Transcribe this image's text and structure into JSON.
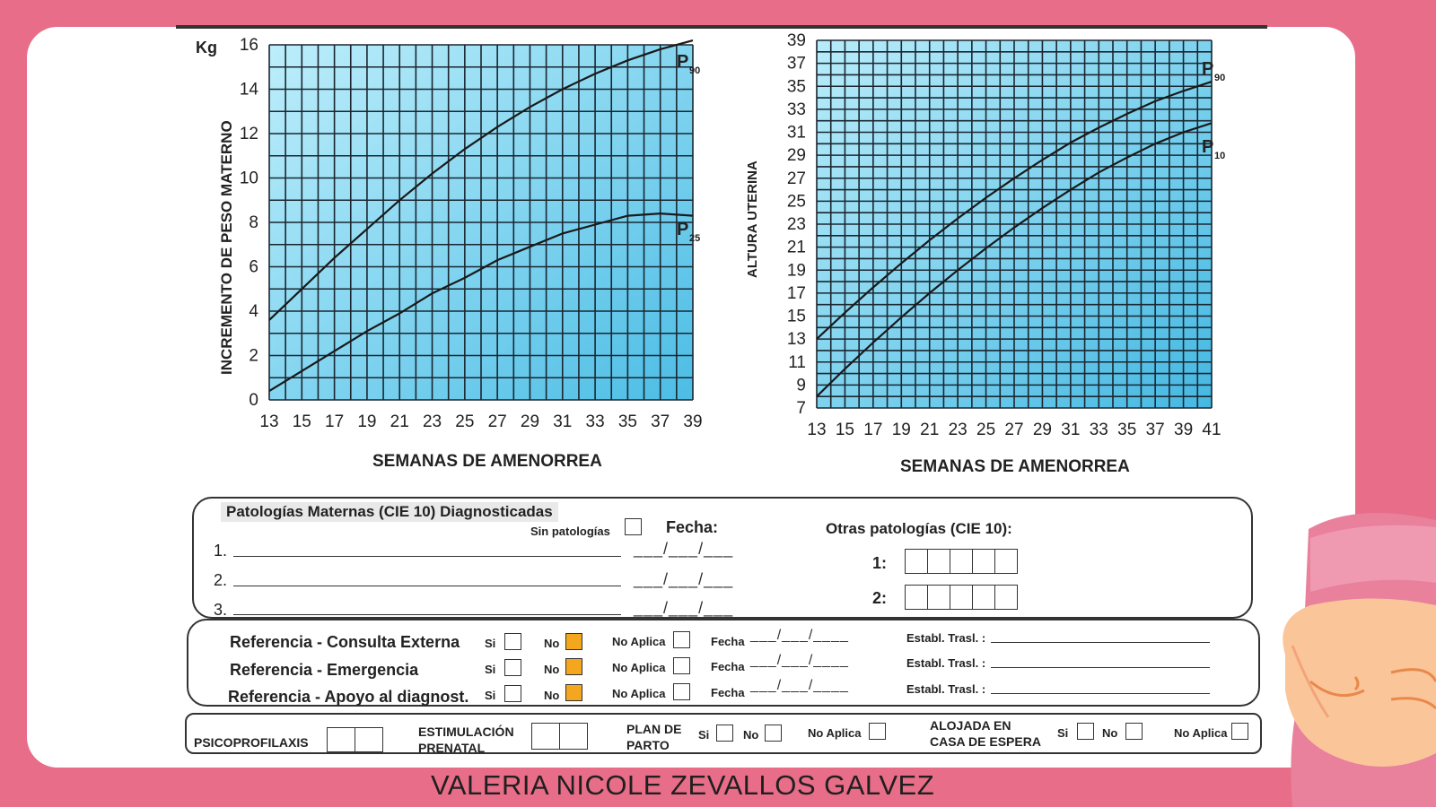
{
  "colors": {
    "background": "#e86d88",
    "grid_fill_light": "#b8ecfa",
    "grid_fill_dark": "#4fc0e6",
    "checked": "#f4a71e"
  },
  "left_chart": {
    "unit": "Kg",
    "ylabel": "INCREMENTO DE PESO MATERNO",
    "xlabel": "SEMANAS DE AMENORREA",
    "y_ticks": [
      "0",
      "2",
      "4",
      "6",
      "8",
      "10",
      "12",
      "14",
      "16"
    ],
    "x_ticks": [
      "13",
      "15",
      "17",
      "19",
      "21",
      "23",
      "25",
      "27",
      "29",
      "31",
      "33",
      "35",
      "37",
      "39"
    ],
    "curve_labels": [
      "P90",
      "P25"
    ]
  },
  "right_chart": {
    "ylabel": "ALTURA UTERINA",
    "xlabel": "SEMANAS DE AMENORREA",
    "y_ticks": [
      "7",
      "9",
      "11",
      "13",
      "15",
      "17",
      "19",
      "21",
      "23",
      "25",
      "27",
      "29",
      "31",
      "33",
      "35",
      "37",
      "39"
    ],
    "x_ticks": [
      "13",
      "15",
      "17",
      "19",
      "21",
      "23",
      "25",
      "27",
      "29",
      "31",
      "33",
      "35",
      "37",
      "39",
      "41"
    ],
    "curve_labels": [
      "P90",
      "P10"
    ]
  },
  "chart_data": [
    {
      "type": "line",
      "title": "",
      "xlabel": "SEMANAS DE AMENORREA",
      "ylabel": "INCREMENTO DE PESO MATERNO",
      "y_unit": "Kg",
      "xlim": [
        13,
        39
      ],
      "ylim": [
        0,
        16
      ],
      "grid": true,
      "series": [
        {
          "name": "P90",
          "x": [
            13,
            15,
            17,
            19,
            21,
            23,
            25,
            27,
            29,
            31,
            33,
            35,
            37,
            39
          ],
          "values": [
            3.6,
            5.0,
            6.4,
            7.7,
            9.0,
            10.2,
            11.3,
            12.3,
            13.2,
            14.0,
            14.7,
            15.3,
            15.8,
            16.2
          ]
        },
        {
          "name": "P25",
          "x": [
            13,
            15,
            17,
            19,
            21,
            23,
            25,
            27,
            29,
            31,
            33,
            35,
            37,
            39
          ],
          "values": [
            0.4,
            1.3,
            2.2,
            3.1,
            3.9,
            4.8,
            5.5,
            6.3,
            6.9,
            7.5,
            7.9,
            8.3,
            8.4,
            8.3
          ]
        }
      ]
    },
    {
      "type": "line",
      "title": "",
      "xlabel": "SEMANAS DE AMENORREA",
      "ylabel": "ALTURA UTERINA",
      "xlim": [
        13,
        41
      ],
      "ylim": [
        7,
        39
      ],
      "grid": true,
      "series": [
        {
          "name": "P90",
          "x": [
            13,
            15,
            17,
            19,
            21,
            23,
            25,
            27,
            29,
            31,
            33,
            35,
            37,
            39,
            41
          ],
          "values": [
            13.0,
            15.3,
            17.5,
            19.6,
            21.6,
            23.5,
            25.3,
            27.0,
            28.6,
            30.1,
            31.4,
            32.6,
            33.7,
            34.6,
            35.4
          ]
        },
        {
          "name": "P10",
          "x": [
            13,
            15,
            17,
            19,
            21,
            23,
            25,
            27,
            29,
            31,
            33,
            35,
            37,
            39,
            41
          ],
          "values": [
            8.0,
            10.4,
            12.7,
            14.9,
            17.0,
            19.0,
            20.9,
            22.7,
            24.4,
            26.0,
            27.5,
            28.8,
            30.0,
            31.0,
            31.8
          ]
        }
      ]
    }
  ],
  "patologias": {
    "title": "Patologías Maternas (CIE 10) Diagnosticadas",
    "sin_patologias": "Sin patologías",
    "fecha": "Fecha:",
    "otras": "Otras patologías (CIE 10):",
    "rows": [
      "1.",
      "2.",
      "3."
    ],
    "otras_rows": [
      "1:",
      "2:"
    ],
    "date_blank": "___/___/___"
  },
  "referencias": {
    "rows": [
      {
        "label": "Referencia - Consulta Externa",
        "si": "Si",
        "no": "No",
        "no_aplica": "No Aplica",
        "fecha": "Fecha",
        "establ": "Establ. Trasl. :",
        "no_checked": true
      },
      {
        "label": "Referencia - Emergencia",
        "si": "Si",
        "no": "No",
        "no_aplica": "No Aplica",
        "fecha": "Fecha",
        "establ": "Establ. Trasl. :",
        "no_checked": true
      },
      {
        "label": "Referencia - Apoyo al diagnost.",
        "si": "Si",
        "no": "No",
        "no_aplica": "No Aplica",
        "fecha": "Fecha",
        "establ": "Establ. Trasl. :",
        "no_checked": true
      }
    ],
    "date_blank": "___/___/____"
  },
  "bottom_row": {
    "psicoprofilaxis": "PSICOPROFILAXIS",
    "estimulacion_1": "ESTIMULACIÓN",
    "estimulacion_2": "PRENATAL",
    "plan_1": "PLAN DE",
    "plan_2": "PARTO",
    "alojada_1": "ALOJADA EN",
    "alojada_2": "CASA DE ESPERA",
    "si": "Si",
    "no": "No",
    "no_aplica": "No Aplica"
  },
  "footer": "VALERIA NICOLE ZEVALLOS GALVEZ"
}
